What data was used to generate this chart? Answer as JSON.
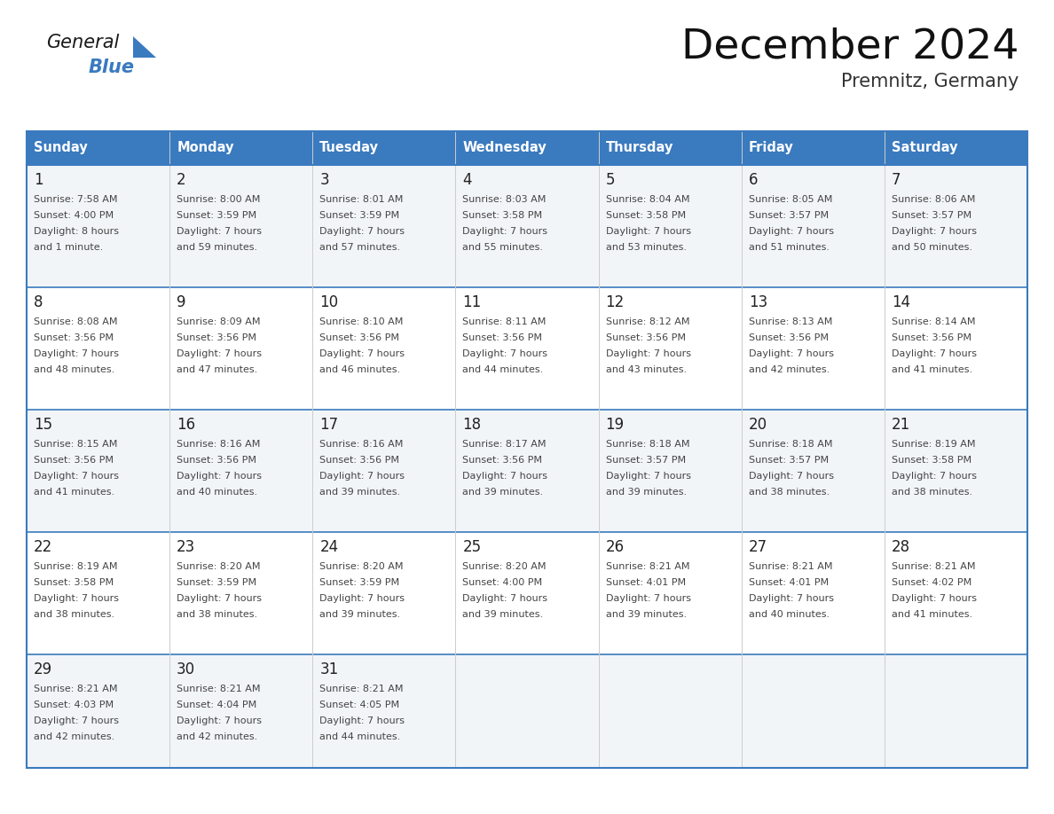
{
  "title": "December 2024",
  "subtitle": "Premnitz, Germany",
  "days_of_week": [
    "Sunday",
    "Monday",
    "Tuesday",
    "Wednesday",
    "Thursday",
    "Friday",
    "Saturday"
  ],
  "header_bg": "#3a7abf",
  "header_text": "#ffffff",
  "cell_bg_odd": "#f2f5f8",
  "cell_bg_even": "#ffffff",
  "row_divider_color": "#3a7abf",
  "col_divider_color": "#cccccc",
  "day_num_color": "#222222",
  "text_color": "#444444",
  "weeks": [
    [
      {
        "day": 1,
        "sunrise": "7:58 AM",
        "sunset": "4:00 PM",
        "daylight": "8 hours",
        "daylight2": "and 1 minute."
      },
      {
        "day": 2,
        "sunrise": "8:00 AM",
        "sunset": "3:59 PM",
        "daylight": "7 hours",
        "daylight2": "and 59 minutes."
      },
      {
        "day": 3,
        "sunrise": "8:01 AM",
        "sunset": "3:59 PM",
        "daylight": "7 hours",
        "daylight2": "and 57 minutes."
      },
      {
        "day": 4,
        "sunrise": "8:03 AM",
        "sunset": "3:58 PM",
        "daylight": "7 hours",
        "daylight2": "and 55 minutes."
      },
      {
        "day": 5,
        "sunrise": "8:04 AM",
        "sunset": "3:58 PM",
        "daylight": "7 hours",
        "daylight2": "and 53 minutes."
      },
      {
        "day": 6,
        "sunrise": "8:05 AM",
        "sunset": "3:57 PM",
        "daylight": "7 hours",
        "daylight2": "and 51 minutes."
      },
      {
        "day": 7,
        "sunrise": "8:06 AM",
        "sunset": "3:57 PM",
        "daylight": "7 hours",
        "daylight2": "and 50 minutes."
      }
    ],
    [
      {
        "day": 8,
        "sunrise": "8:08 AM",
        "sunset": "3:56 PM",
        "daylight": "7 hours",
        "daylight2": "and 48 minutes."
      },
      {
        "day": 9,
        "sunrise": "8:09 AM",
        "sunset": "3:56 PM",
        "daylight": "7 hours",
        "daylight2": "and 47 minutes."
      },
      {
        "day": 10,
        "sunrise": "8:10 AM",
        "sunset": "3:56 PM",
        "daylight": "7 hours",
        "daylight2": "and 46 minutes."
      },
      {
        "day": 11,
        "sunrise": "8:11 AM",
        "sunset": "3:56 PM",
        "daylight": "7 hours",
        "daylight2": "and 44 minutes."
      },
      {
        "day": 12,
        "sunrise": "8:12 AM",
        "sunset": "3:56 PM",
        "daylight": "7 hours",
        "daylight2": "and 43 minutes."
      },
      {
        "day": 13,
        "sunrise": "8:13 AM",
        "sunset": "3:56 PM",
        "daylight": "7 hours",
        "daylight2": "and 42 minutes."
      },
      {
        "day": 14,
        "sunrise": "8:14 AM",
        "sunset": "3:56 PM",
        "daylight": "7 hours",
        "daylight2": "and 41 minutes."
      }
    ],
    [
      {
        "day": 15,
        "sunrise": "8:15 AM",
        "sunset": "3:56 PM",
        "daylight": "7 hours",
        "daylight2": "and 41 minutes."
      },
      {
        "day": 16,
        "sunrise": "8:16 AM",
        "sunset": "3:56 PM",
        "daylight": "7 hours",
        "daylight2": "and 40 minutes."
      },
      {
        "day": 17,
        "sunrise": "8:16 AM",
        "sunset": "3:56 PM",
        "daylight": "7 hours",
        "daylight2": "and 39 minutes."
      },
      {
        "day": 18,
        "sunrise": "8:17 AM",
        "sunset": "3:56 PM",
        "daylight": "7 hours",
        "daylight2": "and 39 minutes."
      },
      {
        "day": 19,
        "sunrise": "8:18 AM",
        "sunset": "3:57 PM",
        "daylight": "7 hours",
        "daylight2": "and 39 minutes."
      },
      {
        "day": 20,
        "sunrise": "8:18 AM",
        "sunset": "3:57 PM",
        "daylight": "7 hours",
        "daylight2": "and 38 minutes."
      },
      {
        "day": 21,
        "sunrise": "8:19 AM",
        "sunset": "3:58 PM",
        "daylight": "7 hours",
        "daylight2": "and 38 minutes."
      }
    ],
    [
      {
        "day": 22,
        "sunrise": "8:19 AM",
        "sunset": "3:58 PM",
        "daylight": "7 hours",
        "daylight2": "and 38 minutes."
      },
      {
        "day": 23,
        "sunrise": "8:20 AM",
        "sunset": "3:59 PM",
        "daylight": "7 hours",
        "daylight2": "and 38 minutes."
      },
      {
        "day": 24,
        "sunrise": "8:20 AM",
        "sunset": "3:59 PM",
        "daylight": "7 hours",
        "daylight2": "and 39 minutes."
      },
      {
        "day": 25,
        "sunrise": "8:20 AM",
        "sunset": "4:00 PM",
        "daylight": "7 hours",
        "daylight2": "and 39 minutes."
      },
      {
        "day": 26,
        "sunrise": "8:21 AM",
        "sunset": "4:01 PM",
        "daylight": "7 hours",
        "daylight2": "and 39 minutes."
      },
      {
        "day": 27,
        "sunrise": "8:21 AM",
        "sunset": "4:01 PM",
        "daylight": "7 hours",
        "daylight2": "and 40 minutes."
      },
      {
        "day": 28,
        "sunrise": "8:21 AM",
        "sunset": "4:02 PM",
        "daylight": "7 hours",
        "daylight2": "and 41 minutes."
      }
    ],
    [
      {
        "day": 29,
        "sunrise": "8:21 AM",
        "sunset": "4:03 PM",
        "daylight": "7 hours",
        "daylight2": "and 42 minutes."
      },
      {
        "day": 30,
        "sunrise": "8:21 AM",
        "sunset": "4:04 PM",
        "daylight": "7 hours",
        "daylight2": "and 42 minutes."
      },
      {
        "day": 31,
        "sunrise": "8:21 AM",
        "sunset": "4:05 PM",
        "daylight": "7 hours",
        "daylight2": "and 44 minutes."
      },
      null,
      null,
      null,
      null
    ]
  ],
  "logo_color_general": "#1a1a1a",
  "logo_color_blue": "#3a7abf"
}
